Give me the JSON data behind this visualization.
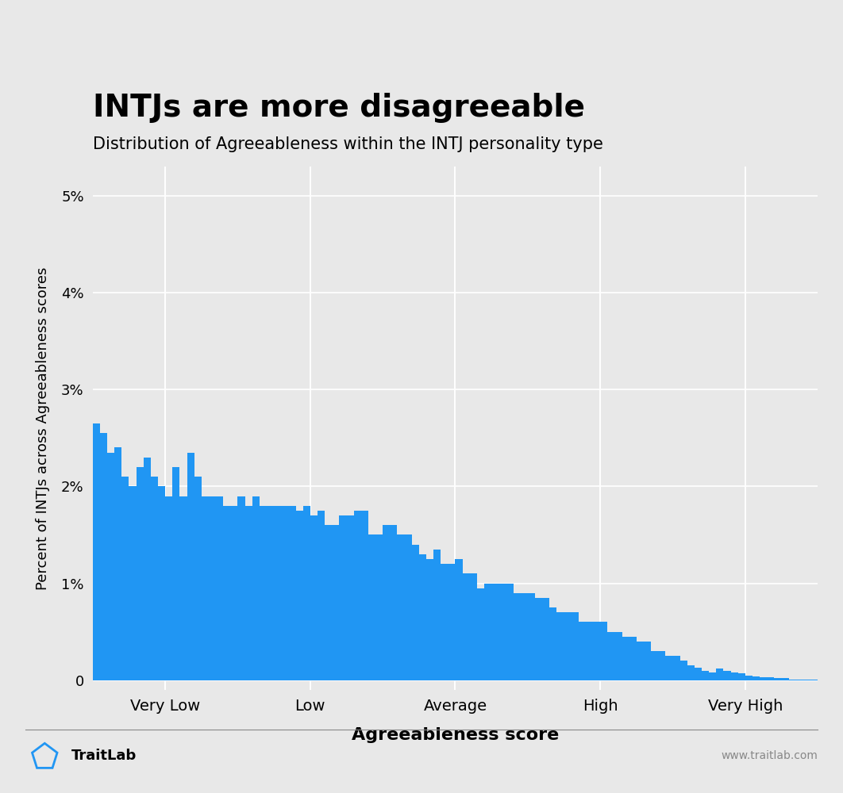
{
  "title": "INTJs are more disagreeable",
  "subtitle": "Distribution of Agreeableness within the INTJ personality type",
  "xlabel": "Agreeableness score",
  "ylabel": "Percent of INTJs across Agreeableness scores",
  "bar_color": "#2096F3",
  "background_color": "#E8E8E8",
  "grid_color": "#FFFFFF",
  "title_fontsize": 28,
  "subtitle_fontsize": 15,
  "xlabel_fontsize": 16,
  "ylabel_fontsize": 13,
  "tick_labels": [
    "Very Low",
    "Low",
    "Average",
    "High",
    "Very High"
  ],
  "ylim": [
    -0.001,
    0.053
  ],
  "yticks": [
    0.0,
    0.01,
    0.02,
    0.03,
    0.04,
    0.05
  ],
  "ytick_labels": [
    "0",
    "1%",
    "2%",
    "3%",
    "4%",
    "5%"
  ],
  "bar_values": [
    0.0265,
    0.0255,
    0.0235,
    0.024,
    0.021,
    0.02,
    0.022,
    0.023,
    0.021,
    0.02,
    0.019,
    0.022,
    0.019,
    0.0235,
    0.021,
    0.019,
    0.019,
    0.019,
    0.018,
    0.018,
    0.019,
    0.018,
    0.019,
    0.018,
    0.018,
    0.018,
    0.018,
    0.018,
    0.0175,
    0.018,
    0.017,
    0.0175,
    0.016,
    0.016,
    0.017,
    0.017,
    0.0175,
    0.0175,
    0.015,
    0.015,
    0.016,
    0.016,
    0.015,
    0.015,
    0.014,
    0.013,
    0.0125,
    0.0135,
    0.012,
    0.012,
    0.0125,
    0.011,
    0.011,
    0.0095,
    0.01,
    0.01,
    0.01,
    0.01,
    0.009,
    0.009,
    0.009,
    0.0085,
    0.0085,
    0.0075,
    0.007,
    0.007,
    0.007,
    0.006,
    0.006,
    0.006,
    0.006,
    0.005,
    0.005,
    0.0045,
    0.0045,
    0.004,
    0.004,
    0.003,
    0.003,
    0.0025,
    0.0025,
    0.002,
    0.0015,
    0.0013,
    0.001,
    0.0008,
    0.0012,
    0.001,
    0.0008,
    0.0007,
    0.0005,
    0.0004,
    0.0003,
    0.0003,
    0.0002,
    0.0002,
    0.0001,
    0.0001,
    5e-05,
    3e-05
  ]
}
